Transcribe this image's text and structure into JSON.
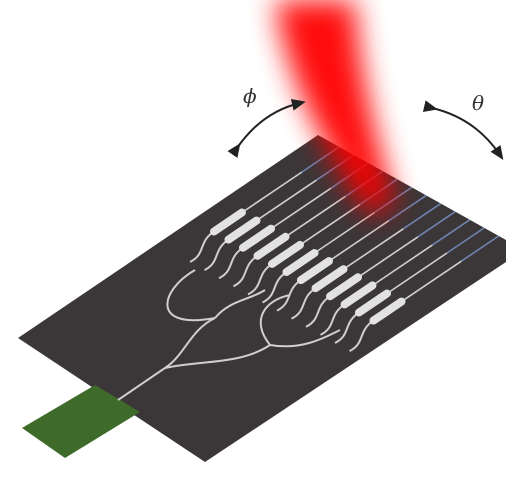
{
  "labels": {
    "phi": "ϕ",
    "theta": "θ"
  }
}
